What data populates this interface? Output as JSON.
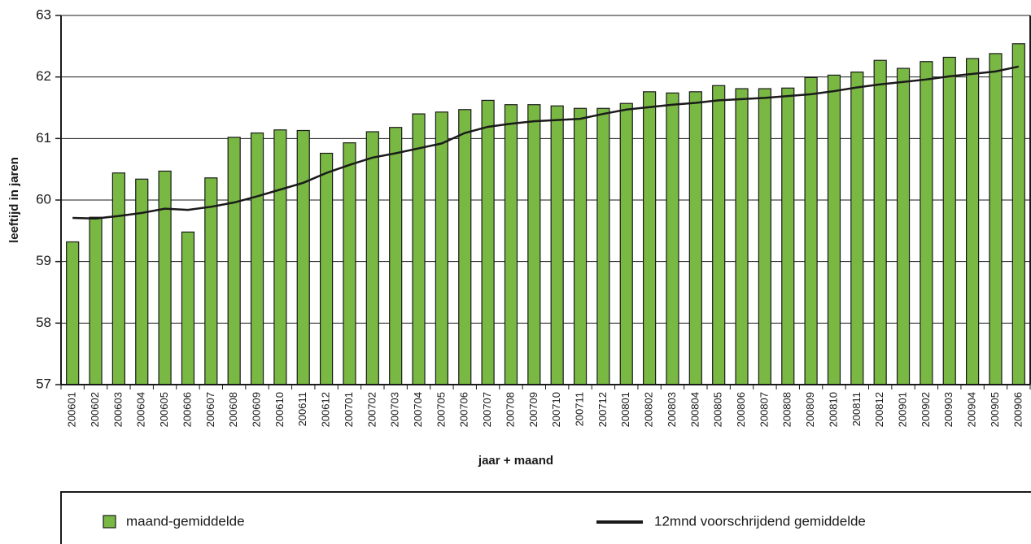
{
  "chart_data": {
    "type": "bar",
    "xlabel": "jaar + maand",
    "ylabel": "leeftijd in jaren",
    "categories": [
      "200601",
      "200602",
      "200603",
      "200604",
      "200605",
      "200606",
      "200607",
      "200608",
      "200609",
      "200610",
      "200611",
      "200612",
      "200701",
      "200702",
      "200703",
      "200704",
      "200705",
      "200706",
      "200707",
      "200708",
      "200709",
      "200710",
      "200711",
      "200712",
      "200801",
      "200802",
      "200803",
      "200804",
      "200805",
      "200806",
      "200807",
      "200808",
      "200809",
      "200810",
      "200811",
      "200812",
      "200901",
      "200902",
      "200903",
      "200904",
      "200905",
      "200906"
    ],
    "series": [
      {
        "name": "maand-gemiddelde",
        "type": "bar",
        "color": "#79b843",
        "values": [
          59.32,
          59.72,
          60.44,
          60.34,
          60.47,
          59.48,
          60.36,
          61.02,
          61.09,
          61.14,
          61.13,
          60.76,
          60.93,
          61.11,
          61.18,
          61.4,
          61.43,
          61.47,
          61.62,
          61.55,
          61.55,
          61.53,
          61.49,
          61.49,
          61.57,
          61.76,
          61.74,
          61.76,
          61.86,
          61.81,
          61.81,
          61.82,
          61.99,
          62.03,
          62.08,
          62.27,
          62.14,
          62.25,
          62.32,
          62.3,
          62.38,
          62.54
        ]
      },
      {
        "name": "12mnd voorschrijdend gemiddelde",
        "type": "line",
        "color": "#1a1a1a",
        "values": [
          59.71,
          59.7,
          59.74,
          59.79,
          59.86,
          59.84,
          59.89,
          59.96,
          60.06,
          60.17,
          60.28,
          60.44,
          60.57,
          60.69,
          60.76,
          60.84,
          60.92,
          61.09,
          61.19,
          61.24,
          61.28,
          61.3,
          61.32,
          61.4,
          61.47,
          61.51,
          61.55,
          61.58,
          61.62,
          61.64,
          61.66,
          61.69,
          61.72,
          61.77,
          61.83,
          61.88,
          61.92,
          61.96,
          62.01,
          62.05,
          62.09,
          62.17
        ]
      }
    ],
    "ylim": [
      57,
      63
    ],
    "yticks": [
      57,
      58,
      59,
      60,
      61,
      62,
      63
    ],
    "grid": true
  }
}
